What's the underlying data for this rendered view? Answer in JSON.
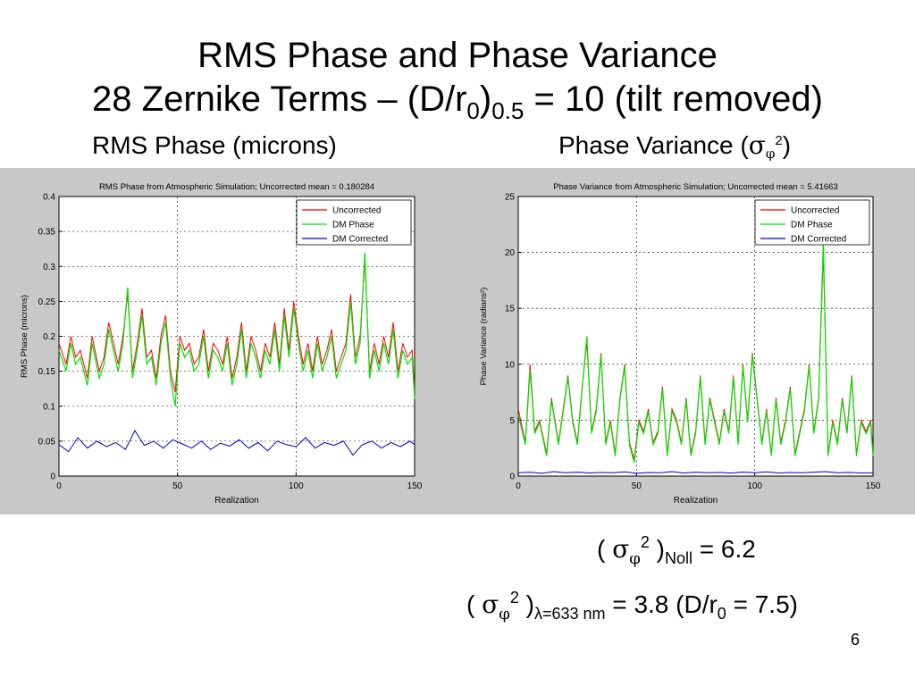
{
  "slide": {
    "title_line1": "RMS Phase and Phase Variance",
    "title_line2_pre": "28 Zernike Terms – (D/r",
    "title_line2_sub0": "0",
    "title_line2_mid": ")",
    "title_line2_sub1": "0.5",
    "title_line2_post": " = 10 (tilt removed)",
    "subhead_left": "RMS Phase (microns)",
    "subhead_right_pre": "Phase Variance (",
    "subhead_right_sym": "σ",
    "subhead_right_sub": "φ",
    "subhead_right_sup": "2",
    "subhead_right_post": ")",
    "formula1": {
      "open": "( ",
      "sym": "σ",
      "sub": "φ",
      "sup": "2",
      "close": " )",
      "subscript": "Noll",
      "rest": " = 6.2"
    },
    "formula2": {
      "open": "( ",
      "sym": "σ",
      "sub": "φ",
      "sup": "2",
      "close": " )",
      "subscript": "λ=633 nm",
      "rest_pre": " = 3.8 (D/r",
      "rest_sub": "0",
      "rest_post": " = 7.5)"
    },
    "page_number": "6"
  },
  "colors": {
    "panel_bg": "#c8c8c8",
    "uncorrected": "#ff0000",
    "dm_phase": "#00e000",
    "dm_corrected": "#0000c0"
  },
  "chart_data": [
    {
      "type": "line",
      "title": "RMS Phase from Atmospheric Simulation; Uncorrected mean = 0.180284",
      "xlabel": "Realization",
      "ylabel": "RMS Phase (microns)",
      "xlim": [
        0,
        150
      ],
      "ylim": [
        0,
        0.4
      ],
      "xticks": [
        "0",
        "50",
        "100",
        "150"
      ],
      "yticks": [
        "0",
        "0.05",
        "0.1",
        "0.15",
        "0.2",
        "0.25",
        "0.3",
        "0.35",
        "0.4"
      ],
      "grid": true,
      "legend_position": "top-right",
      "legend": [
        "Uncorrected",
        "DM Phase",
        "DM Corrected"
      ],
      "series": [
        {
          "name": "Uncorrected",
          "x": [
            0,
            3,
            5,
            7,
            9,
            12,
            14,
            17,
            19,
            21,
            23,
            25,
            27,
            29,
            31,
            33,
            35,
            37,
            39,
            41,
            43,
            45,
            47,
            49,
            51,
            53,
            55,
            57,
            59,
            61,
            63,
            65,
            67,
            69,
            71,
            73,
            75,
            77,
            79,
            81,
            83,
            85,
            87,
            89,
            91,
            93,
            95,
            97,
            99,
            101,
            103,
            105,
            107,
            109,
            111,
            113,
            115,
            117,
            119,
            121,
            123,
            125,
            127,
            129,
            131,
            133,
            135,
            137,
            139,
            141,
            143,
            145,
            147,
            149,
            150
          ],
          "values": [
            0.19,
            0.16,
            0.2,
            0.17,
            0.18,
            0.14,
            0.2,
            0.15,
            0.17,
            0.22,
            0.19,
            0.16,
            0.2,
            0.26,
            0.15,
            0.19,
            0.24,
            0.17,
            0.18,
            0.14,
            0.2,
            0.23,
            0.15,
            0.12,
            0.2,
            0.18,
            0.19,
            0.16,
            0.17,
            0.21,
            0.15,
            0.19,
            0.18,
            0.16,
            0.2,
            0.14,
            0.17,
            0.22,
            0.15,
            0.2,
            0.18,
            0.15,
            0.19,
            0.17,
            0.22,
            0.16,
            0.24,
            0.18,
            0.25,
            0.2,
            0.16,
            0.19,
            0.15,
            0.2,
            0.16,
            0.18,
            0.21,
            0.15,
            0.17,
            0.19,
            0.26,
            0.17,
            0.2,
            0.31,
            0.15,
            0.19,
            0.16,
            0.2,
            0.17,
            0.22,
            0.15,
            0.19,
            0.17,
            0.18,
            0.12
          ]
        },
        {
          "name": "DM Phase",
          "x": [
            0,
            3,
            5,
            7,
            9,
            12,
            14,
            17,
            19,
            21,
            23,
            25,
            27,
            29,
            31,
            33,
            35,
            37,
            39,
            41,
            43,
            45,
            47,
            49,
            51,
            53,
            55,
            57,
            59,
            61,
            63,
            65,
            67,
            69,
            71,
            73,
            75,
            77,
            79,
            81,
            83,
            85,
            87,
            89,
            91,
            93,
            95,
            97,
            99,
            101,
            103,
            105,
            107,
            109,
            111,
            113,
            115,
            117,
            119,
            121,
            123,
            125,
            127,
            129,
            131,
            133,
            135,
            137,
            139,
            141,
            143,
            145,
            147,
            149,
            150
          ],
          "values": [
            0.18,
            0.15,
            0.19,
            0.16,
            0.17,
            0.13,
            0.19,
            0.14,
            0.16,
            0.21,
            0.18,
            0.15,
            0.19,
            0.27,
            0.14,
            0.18,
            0.23,
            0.16,
            0.17,
            0.13,
            0.19,
            0.22,
            0.14,
            0.1,
            0.19,
            0.17,
            0.18,
            0.15,
            0.16,
            0.2,
            0.14,
            0.18,
            0.17,
            0.15,
            0.19,
            0.13,
            0.16,
            0.21,
            0.14,
            0.19,
            0.17,
            0.14,
            0.18,
            0.16,
            0.21,
            0.15,
            0.23,
            0.17,
            0.24,
            0.19,
            0.15,
            0.18,
            0.14,
            0.19,
            0.15,
            0.17,
            0.2,
            0.14,
            0.16,
            0.18,
            0.25,
            0.16,
            0.19,
            0.32,
            0.14,
            0.18,
            0.15,
            0.19,
            0.16,
            0.21,
            0.14,
            0.18,
            0.16,
            0.17,
            0.11
          ]
        },
        {
          "name": "DM Corrected",
          "x": [
            0,
            4,
            8,
            12,
            16,
            20,
            24,
            28,
            32,
            36,
            40,
            44,
            48,
            52,
            56,
            60,
            64,
            68,
            72,
            76,
            80,
            84,
            88,
            92,
            96,
            100,
            104,
            108,
            112,
            116,
            120,
            124,
            128,
            132,
            136,
            140,
            144,
            148,
            150
          ],
          "values": [
            0.045,
            0.035,
            0.055,
            0.04,
            0.05,
            0.042,
            0.048,
            0.038,
            0.065,
            0.044,
            0.05,
            0.04,
            0.052,
            0.046,
            0.04,
            0.05,
            0.038,
            0.047,
            0.043,
            0.052,
            0.04,
            0.048,
            0.036,
            0.05,
            0.045,
            0.042,
            0.055,
            0.04,
            0.048,
            0.044,
            0.05,
            0.03,
            0.045,
            0.05,
            0.04,
            0.048,
            0.042,
            0.05,
            0.045
          ]
        }
      ]
    },
    {
      "type": "line",
      "title": "Phase Variance from Atmospheric Simulation; Uncorrected mean = 5.41663",
      "xlabel": "Realization",
      "ylabel": "Phase Variance (radians²)",
      "xlim": [
        0,
        150
      ],
      "ylim": [
        0,
        25
      ],
      "xticks": [
        "0",
        "50",
        "100",
        "150"
      ],
      "yticks": [
        "0",
        "5",
        "10",
        "15",
        "20",
        "25"
      ],
      "grid": true,
      "legend_position": "top-right",
      "legend": [
        "Uncorrected",
        "DM Phase",
        "DM Corrected"
      ],
      "series": [
        {
          "name": "Uncorrected",
          "x": [
            0,
            3,
            5,
            7,
            9,
            12,
            14,
            17,
            19,
            21,
            23,
            25,
            27,
            29,
            31,
            33,
            35,
            37,
            39,
            41,
            43,
            45,
            47,
            49,
            51,
            53,
            55,
            57,
            59,
            61,
            63,
            65,
            67,
            69,
            71,
            73,
            75,
            77,
            79,
            81,
            83,
            85,
            87,
            89,
            91,
            93,
            95,
            97,
            99,
            101,
            103,
            105,
            107,
            109,
            111,
            113,
            115,
            117,
            119,
            121,
            123,
            125,
            127,
            129,
            131,
            133,
            135,
            137,
            139,
            141,
            143,
            145,
            147,
            149,
            150
          ],
          "values": [
            6,
            3,
            10,
            4,
            5,
            2,
            7,
            3,
            6,
            9,
            5,
            3,
            8,
            12,
            4,
            6,
            11,
            3,
            5,
            2,
            7,
            10,
            3,
            1.5,
            5,
            4,
            6,
            3,
            4,
            8,
            2,
            6,
            5,
            3,
            7,
            2,
            4,
            9,
            3,
            7,
            5,
            3,
            6,
            4,
            9,
            3,
            10,
            5,
            11,
            7,
            3,
            6,
            2,
            7,
            3,
            5,
            8,
            2,
            4,
            6,
            10,
            4,
            7,
            20,
            2,
            5,
            3,
            7,
            4,
            9,
            2,
            5,
            4,
            5,
            2
          ]
        },
        {
          "name": "DM Phase",
          "x": [
            0,
            3,
            5,
            7,
            9,
            12,
            14,
            17,
            19,
            21,
            23,
            25,
            27,
            29,
            31,
            33,
            35,
            37,
            39,
            41,
            43,
            45,
            47,
            49,
            51,
            53,
            55,
            57,
            59,
            61,
            63,
            65,
            67,
            69,
            71,
            73,
            75,
            77,
            79,
            81,
            83,
            85,
            87,
            89,
            91,
            93,
            95,
            97,
            99,
            101,
            103,
            105,
            107,
            109,
            111,
            113,
            115,
            117,
            119,
            121,
            123,
            125,
            127,
            129,
            131,
            133,
            135,
            137,
            139,
            141,
            143,
            145,
            147,
            149,
            150
          ],
          "values": [
            5.5,
            2.8,
            9.5,
            3.8,
            4.8,
            1.8,
            6.8,
            2.8,
            5.8,
            8.8,
            4.8,
            2.8,
            7.8,
            12.5,
            3.8,
            5.8,
            10.8,
            2.8,
            4.8,
            1.8,
            6.8,
            9.8,
            2.8,
            1.2,
            4.8,
            3.8,
            5.8,
            2.8,
            3.8,
            7.8,
            1.8,
            5.8,
            4.8,
            2.8,
            6.8,
            1.8,
            3.8,
            8.8,
            2.8,
            6.8,
            4.8,
            2.8,
            5.8,
            3.8,
            8.8,
            2.8,
            9.8,
            4.8,
            10.8,
            6.8,
            2.8,
            5.8,
            1.8,
            6.8,
            2.8,
            4.8,
            7.8,
            1.8,
            3.8,
            5.8,
            9.8,
            3.8,
            6.8,
            21,
            1.8,
            4.8,
            2.8,
            6.8,
            3.8,
            8.8,
            1.8,
            4.8,
            3.8,
            4.8,
            1.8
          ]
        },
        {
          "name": "DM Corrected",
          "x": [
            0,
            5,
            10,
            15,
            20,
            25,
            30,
            35,
            40,
            45,
            50,
            55,
            60,
            65,
            70,
            75,
            80,
            85,
            90,
            95,
            100,
            105,
            110,
            115,
            120,
            125,
            130,
            135,
            140,
            145,
            150
          ],
          "values": [
            0.3,
            0.35,
            0.25,
            0.4,
            0.3,
            0.35,
            0.28,
            0.33,
            0.3,
            0.38,
            0.25,
            0.32,
            0.3,
            0.4,
            0.28,
            0.35,
            0.3,
            0.33,
            0.27,
            0.36,
            0.3,
            0.38,
            0.28,
            0.32,
            0.3,
            0.35,
            0.4,
            0.3,
            0.33,
            0.28,
            0.3
          ]
        }
      ]
    }
  ]
}
